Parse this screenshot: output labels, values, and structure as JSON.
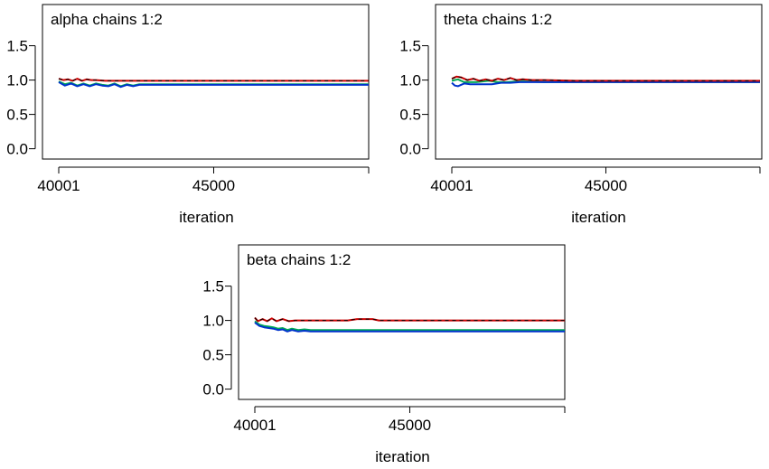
{
  "chart_data": [
    {
      "type": "line",
      "title": "alpha chains 1:2",
      "xlabel": "iteration",
      "ylabel": "",
      "x_ticks": [
        "40001",
        "45000"
      ],
      "y_ticks": [
        "0.0",
        "0.5",
        "1.0",
        "1.5"
      ],
      "xlim": [
        40001,
        50000
      ],
      "ylim": [
        -0.15,
        2.1
      ],
      "series": [
        {
          "color": "#cc0000",
          "dashed_color": "#000000",
          "x": [
            40001,
            40150,
            40300,
            40450,
            40600,
            40750,
            40900,
            41050,
            41200,
            41500,
            42000,
            43000,
            44000,
            45000,
            46000,
            47000,
            48000,
            49000,
            50000
          ],
          "values": [
            1.02,
            1.0,
            1.01,
            0.99,
            1.02,
            0.99,
            1.01,
            1.0,
            1.0,
            0.99,
            0.99,
            0.99,
            0.99,
            0.99,
            0.99,
            0.99,
            0.99,
            0.99,
            0.99
          ]
        },
        {
          "color": "#00aa55",
          "x": [
            40001,
            40200,
            40400,
            40600,
            40800,
            41000,
            41200,
            41400,
            41600,
            41800,
            42000,
            42200,
            42400,
            42600,
            42800,
            43000,
            44000,
            46000,
            48000,
            50000
          ],
          "values": [
            0.98,
            0.94,
            0.96,
            0.92,
            0.95,
            0.92,
            0.95,
            0.93,
            0.92,
            0.95,
            0.91,
            0.94,
            0.92,
            0.94,
            0.94,
            0.94,
            0.94,
            0.94,
            0.94,
            0.94
          ]
        },
        {
          "color": "#0033cc",
          "x": [
            40001,
            40200,
            40400,
            40600,
            40800,
            41000,
            41200,
            41400,
            41600,
            41800,
            42000,
            42200,
            42400,
            42600,
            43000,
            44000,
            46000,
            48000,
            50000
          ],
          "values": [
            0.97,
            0.92,
            0.95,
            0.91,
            0.94,
            0.91,
            0.94,
            0.92,
            0.91,
            0.94,
            0.9,
            0.93,
            0.91,
            0.93,
            0.93,
            0.93,
            0.93,
            0.93,
            0.93
          ]
        }
      ]
    },
    {
      "type": "line",
      "title": "theta chains 1:2",
      "xlabel": "iteration",
      "ylabel": "",
      "x_ticks": [
        "40001",
        "45000"
      ],
      "y_ticks": [
        "0.0",
        "0.5",
        "1.0",
        "1.5"
      ],
      "xlim": [
        40001,
        50000
      ],
      "ylim": [
        -0.15,
        2.1
      ],
      "series": [
        {
          "color": "#cc0000",
          "dashed_color": "#000000",
          "x": [
            40001,
            40150,
            40300,
            40500,
            40700,
            40900,
            41100,
            41300,
            41500,
            41700,
            41900,
            42100,
            42300,
            42600,
            43000,
            44000,
            46000,
            48000,
            50000
          ],
          "values": [
            1.02,
            1.05,
            1.04,
            1.0,
            1.02,
            0.99,
            1.01,
            0.99,
            1.02,
            1.0,
            1.03,
            1.0,
            1.01,
            1.0,
            1.0,
            0.99,
            0.99,
            0.99,
            0.99
          ]
        },
        {
          "color": "#00aa55",
          "x": [
            40001,
            40200,
            40400,
            40600,
            40800,
            41000,
            41200,
            41500,
            41800,
            42100,
            42400,
            43000,
            44000,
            46000,
            48000,
            50000
          ],
          "values": [
            0.99,
            1.01,
            0.97,
            0.97,
            0.97,
            0.98,
            0.99,
            0.97,
            0.97,
            0.98,
            0.98,
            0.97,
            0.97,
            0.97,
            0.97,
            0.97
          ]
        },
        {
          "color": "#0033cc",
          "x": [
            40001,
            40100,
            40200,
            40400,
            40600,
            40800,
            41000,
            41300,
            41600,
            41900,
            42200,
            42500,
            43000,
            44000,
            46000,
            48000,
            50000
          ],
          "values": [
            0.96,
            0.92,
            0.91,
            0.95,
            0.94,
            0.94,
            0.94,
            0.94,
            0.96,
            0.96,
            0.97,
            0.97,
            0.97,
            0.97,
            0.97,
            0.97,
            0.97
          ]
        }
      ]
    },
    {
      "type": "line",
      "title": "beta chains 1:2",
      "xlabel": "iteration",
      "ylabel": "",
      "x_ticks": [
        "40001",
        "45000"
      ],
      "y_ticks": [
        "0.0",
        "0.5",
        "1.0",
        "1.5"
      ],
      "xlim": [
        40001,
        50000
      ],
      "ylim": [
        -0.15,
        2.1
      ],
      "series": [
        {
          "color": "#cc0000",
          "dashed_color": "#000000",
          "x": [
            40001,
            40100,
            40250,
            40400,
            40550,
            40700,
            40900,
            41100,
            41300,
            41600,
            42000,
            42500,
            43000,
            43300,
            43600,
            43800,
            44000,
            45000,
            46000,
            47000,
            48000,
            49000,
            50000
          ],
          "values": [
            1.04,
            0.99,
            1.02,
            0.99,
            1.03,
            0.99,
            1.02,
            0.99,
            1.0,
            1.0,
            1.0,
            1.0,
            1.0,
            1.02,
            1.02,
            1.02,
            1.0,
            1.0,
            1.0,
            1.0,
            1.0,
            1.0,
            1.0
          ]
        },
        {
          "color": "#00aa55",
          "x": [
            40001,
            40150,
            40300,
            40450,
            40600,
            40750,
            40900,
            41050,
            41200,
            41400,
            41600,
            41800,
            42000,
            42300,
            43000,
            44000,
            46000,
            48000,
            50000
          ],
          "values": [
            0.99,
            0.94,
            0.92,
            0.91,
            0.9,
            0.88,
            0.89,
            0.86,
            0.88,
            0.86,
            0.87,
            0.86,
            0.86,
            0.86,
            0.86,
            0.86,
            0.86,
            0.86,
            0.86
          ]
        },
        {
          "color": "#0033cc",
          "x": [
            40001,
            40150,
            40300,
            40450,
            40600,
            40750,
            40900,
            41050,
            41200,
            41400,
            41600,
            41800,
            42000,
            42300,
            43000,
            44000,
            46000,
            48000,
            50000
          ],
          "values": [
            0.97,
            0.92,
            0.9,
            0.89,
            0.88,
            0.86,
            0.87,
            0.84,
            0.86,
            0.84,
            0.85,
            0.84,
            0.84,
            0.84,
            0.84,
            0.84,
            0.84,
            0.84,
            0.84
          ]
        }
      ]
    }
  ]
}
